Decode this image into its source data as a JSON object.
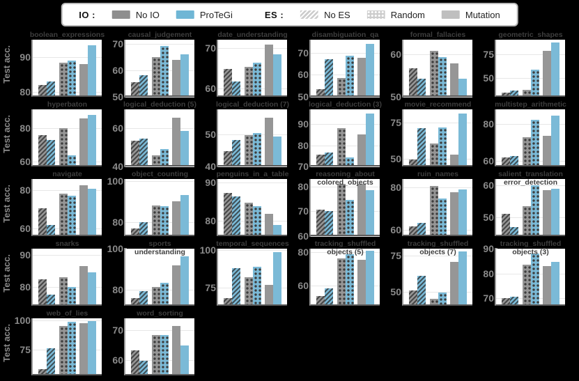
{
  "colors": {
    "background": "#000000",
    "panel": "#ffffff",
    "no_io_gray": "#969696",
    "protegi_blue": "#7bbad7",
    "tick_label": "#8a8a8a",
    "title_text": "#3e3e3e",
    "gridline": "#e7e7e7",
    "pattern_dark": "#3d3d3d"
  },
  "legend": {
    "io_label": "IO :",
    "io_items": [
      {
        "label": "No IO",
        "color": "#8e8e8e"
      },
      {
        "label": "ProTeGi",
        "color": "#6fb6d5"
      }
    ],
    "es_label": "ES :",
    "es_items": [
      {
        "label": "No ES",
        "pattern": "hatch"
      },
      {
        "label": "Random",
        "pattern": "dots"
      },
      {
        "label": "Mutation",
        "pattern": "solid"
      }
    ]
  },
  "ylabel": "Test acc.",
  "chart_data": {
    "type": "bar",
    "grid": {
      "rows": 5,
      "cols": 6
    },
    "ylabel": "Test acc.",
    "series_order": [
      "No IO + No ES",
      "ProTeGi + No ES",
      "No IO + Random",
      "ProTeGi + Random",
      "No IO + Mutation",
      "ProTeGi + Mutation"
    ],
    "bar_styles": [
      {
        "color": "gray",
        "pattern": "hatch"
      },
      {
        "color": "blue",
        "pattern": "hatch"
      },
      {
        "color": "gray",
        "pattern": "dots"
      },
      {
        "color": "blue",
        "pattern": "dots"
      },
      {
        "color": "gray",
        "pattern": "solid"
      },
      {
        "color": "blue",
        "pattern": "solid"
      }
    ],
    "subplots": [
      {
        "name": "boolean_expressions",
        "title_lines": [
          "boolean_expressions"
        ],
        "ylim": [
          78.5,
          95
        ],
        "yticks": [
          80,
          90
        ],
        "values": [
          81.5,
          82.5,
          88,
          88.5,
          87.5,
          93
        ]
      },
      {
        "name": "causal_judgement",
        "title_lines": [
          "causal_judgement"
        ],
        "ylim": [
          50,
          71.5
        ],
        "yticks": [
          50,
          60,
          70
        ],
        "values": [
          55,
          57.5,
          64.5,
          68.5,
          63.5,
          65.5
        ]
      },
      {
        "name": "date_understanding",
        "title_lines": [
          "date_understanding"
        ],
        "ylim": [
          58,
          72
        ],
        "yticks": [
          60,
          70
        ],
        "values": [
          64.5,
          61.5,
          65,
          66,
          70.5,
          68
        ]
      },
      {
        "name": "disambiguation_qa",
        "title_lines": [
          "disambiguation_qa"
        ],
        "ylim": [
          50,
          76
        ],
        "yticks": [
          50,
          60,
          70
        ],
        "values": [
          53,
          66.5,
          58,
          68,
          67,
          73.5
        ]
      },
      {
        "name": "formal_fallacies",
        "title_lines": [
          "formal_fallacies"
        ],
        "ylim": [
          50,
          63.5
        ],
        "yticks": [
          50,
          60
        ],
        "values": [
          56.5,
          54,
          60.5,
          59,
          57.5,
          54
        ]
      },
      {
        "name": "geometric_shapes",
        "title_lines": [
          "geometric_shapes"
        ],
        "ylim": [
          30,
          90
        ],
        "yticks": [
          50,
          75
        ],
        "values": [
          33,
          35,
          36,
          57,
          77,
          86
        ]
      },
      {
        "name": "hyperbaton",
        "title_lines": [
          "hyperbaton"
        ],
        "ylim": [
          57,
          91
        ],
        "yticks": [
          60,
          80
        ],
        "values": [
          75,
          72,
          79,
          63,
          85,
          87
        ]
      },
      {
        "name": "logical_deduction_5",
        "title_lines": [
          "logical_deduction (5)"
        ],
        "ylim": [
          40,
          70
        ],
        "yticks": [
          40,
          60
        ],
        "values": [
          53,
          54,
          45,
          48.5,
          65,
          58
        ]
      },
      {
        "name": "logical_deduction_7",
        "title_lines": [
          "logical_deduction (7)"
        ],
        "ylim": [
          40,
          58
        ],
        "yticks": [
          40,
          50
        ],
        "values": [
          44.5,
          48,
          49.5,
          50,
          55,
          49
        ]
      },
      {
        "name": "logical_deduction_3",
        "title_lines": [
          "logical_deduction (3)"
        ],
        "ylim": [
          70,
          97
        ],
        "yticks": [
          70,
          80,
          90
        ],
        "values": [
          75,
          76,
          87.5,
          73.5,
          84.5,
          94.5
        ]
      },
      {
        "name": "movie_recommend",
        "title_lines": [
          "movie_recommend"
        ],
        "ylim": [
          45,
          84
        ],
        "yticks": [
          50,
          75
        ],
        "values": [
          49,
          70,
          60,
          70.5,
          52,
          80
        ]
      },
      {
        "name": "multistep_arithmetic",
        "title_lines": [
          "multistep_arithmetic"
        ],
        "ylim": [
          57,
          88
        ],
        "yticks": [
          60,
          80
        ],
        "values": [
          61,
          62,
          72,
          81.5,
          73,
          84
        ]
      },
      {
        "name": "navigate",
        "title_lines": [
          "navigate"
        ],
        "ylim": [
          56,
          86
        ],
        "yticks": [
          60,
          80
        ],
        "values": [
          70,
          61,
          77.5,
          76.5,
          82,
          80
        ]
      },
      {
        "name": "object_counting",
        "title_lines": [
          "object_counting"
        ],
        "ylim": [
          73,
          101
        ],
        "yticks": [
          80,
          100
        ],
        "values": [
          76,
          79,
          87.5,
          87,
          89.5,
          92.5
        ]
      },
      {
        "name": "penguins_in_a_table",
        "title_lines": [
          "penguins_in_a_table"
        ],
        "ylim": [
          76,
          91
        ],
        "yticks": [
          80,
          90
        ],
        "values": [
          87,
          86,
          84.5,
          83.5,
          81.5,
          78.5
        ]
      },
      {
        "name": "reasoning_about_colored_objects",
        "title_lines": [
          "reasoning_about",
          "colored_objects"
        ],
        "ylim": [
          60,
          83
        ],
        "yticks": [
          60,
          70,
          80
        ],
        "values": [
          70,
          69.5,
          80.5,
          74,
          80.5,
          78
        ]
      },
      {
        "name": "ruin_names",
        "title_lines": [
          "ruin_names"
        ],
        "ylim": [
          57,
          84
        ],
        "yticks": [
          60,
          80
        ],
        "values": [
          61,
          62.5,
          80,
          74,
          77,
          78.5
        ]
      },
      {
        "name": "salient_translation_error_detection",
        "title_lines": [
          "salient_translation",
          "error_detection"
        ],
        "ylim": [
          44,
          62
        ],
        "yticks": [
          50,
          60
        ],
        "values": [
          50.5,
          46.5,
          53,
          59.5,
          58,
          58.5
        ]
      },
      {
        "name": "snarks",
        "title_lines": [
          "snarks"
        ],
        "ylim": [
          74,
          92
        ],
        "yticks": [
          80,
          90
        ],
        "values": [
          82,
          77,
          82.5,
          79.5,
          86,
          84
        ]
      },
      {
        "name": "sports_understanding",
        "title_lines": [
          "sports",
          "understanding"
        ],
        "ylim": [
          72,
          100
        ],
        "yticks": [
          80,
          100
        ],
        "values": [
          75,
          78.5,
          80.5,
          82.5,
          91,
          95.5
        ]
      },
      {
        "name": "temporal_sequences",
        "title_lines": [
          "temporal_sequences"
        ],
        "ylim": [
          63,
          101
        ],
        "yticks": [
          75,
          100
        ],
        "values": [
          67,
          87,
          81,
          88,
          76,
          98
        ]
      },
      {
        "name": "tracking_shuffled_objects_5",
        "title_lines": [
          "tracking_shuffled",
          "objects (5)"
        ],
        "ylim": [
          48,
          82
        ],
        "yticks": [
          60,
          80
        ],
        "values": [
          53,
          57.5,
          75.5,
          78,
          74.5,
          80
        ]
      },
      {
        "name": "tracking_shuffled_objects_7",
        "title_lines": [
          "tracking_shuffled",
          "objects (7)"
        ],
        "ylim": [
          40,
          80
        ],
        "yticks": [
          50,
          75
        ],
        "values": [
          50,
          60,
          44,
          48.5,
          70,
          77
        ]
      },
      {
        "name": "tracking_shuffled_objects_3",
        "title_lines": [
          "tracking_shuffled",
          "objects (3)"
        ],
        "ylim": [
          67,
          90
        ],
        "yticks": [
          70,
          80,
          90
        ],
        "values": [
          69.5,
          70,
          83,
          87.5,
          82.5,
          84
        ]
      },
      {
        "name": "web_of_lies",
        "title_lines": [
          "web_of_lies"
        ],
        "ylim": [
          53,
          102
        ],
        "yticks": [
          75,
          100
        ],
        "values": [
          57,
          75,
          94,
          98,
          96.5,
          98.5
        ]
      },
      {
        "name": "word_sorting",
        "title_lines": [
          "word_sorting"
        ],
        "ylim": [
          55,
          74
        ],
        "yticks": [
          60,
          70
        ],
        "values": [
          63,
          59.5,
          68,
          68,
          71,
          64.5
        ]
      }
    ]
  }
}
